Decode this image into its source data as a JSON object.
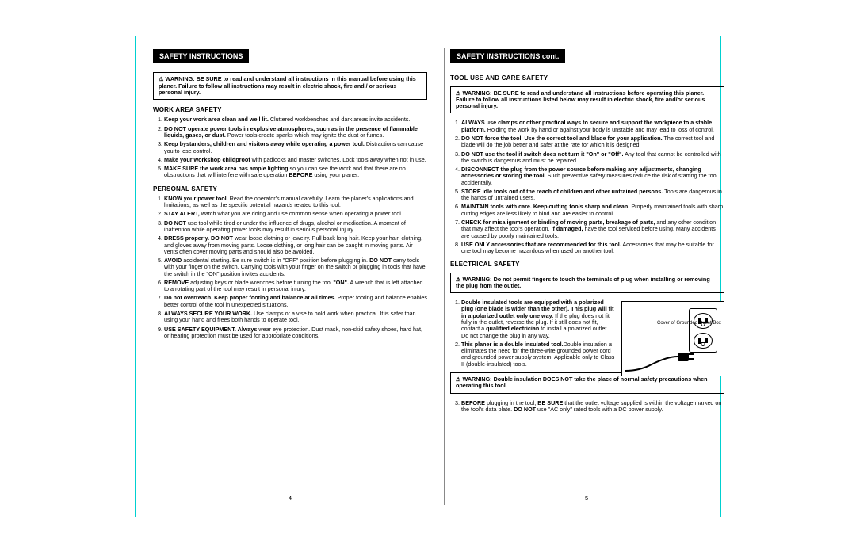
{
  "left": {
    "tab": "SAFETY INSTRUCTIONS",
    "warning_lead": "⚠ WARNING:",
    "warning_body": "BE SURE to read and understand all instructions in this manual before using this planer. Failure to follow all instructions may result in electric shock, fire and / or serious personal injury.",
    "work_head": "WORK AREA SAFETY",
    "work": [
      {
        "b": "Keep your work area clean and well lit.",
        "t": " Cluttered workbenches and dark areas invite accidents."
      },
      {
        "b": "DO NOT operate power tools in explosive atmospheres, such as in the presence of flammable liquids, gases, or dust.",
        "t": " Power tools create sparks which may ignite the dust or fumes."
      },
      {
        "b": "Keep bystanders, children and visitors away while operating a power tool.",
        "t": " Distractions can cause you to lose control."
      },
      {
        "b": "Make your workshop childproof",
        "t": " with padlocks and master switches. Lock tools away when not in use."
      },
      {
        "b": "MAKE SURE the work area has ample lighting",
        "t": " so you can see the work and that there are no obstructions that will interfere with safe operation ",
        "b2": "BEFORE",
        "t2": " using your planer."
      }
    ],
    "pers_head": "PERSONAL SAFETY",
    "pers": [
      {
        "b": "KNOW your power tool.",
        "t": " Read the operator's manual carefully. Learn the planer's applications and limitations, as well as the specific potential hazards related to this tool."
      },
      {
        "b": "STAY ALERT,",
        "t": " watch what you are doing and use common sense when operating a power tool."
      },
      {
        "b": "DO NOT",
        "t": " use tool while tired or under the influence of drugs, alcohol or medication. A moment of inattention while operating power tools may result in serious personal injury."
      },
      {
        "b": "DRESS properly. DO NOT",
        "t": " wear loose clothing or jewelry. Pull back long hair. Keep your hair, clothing, and gloves away from moving parts. Loose clothing, or long hair can be caught in moving parts. Air vents often cover moving parts and should also be avoided."
      },
      {
        "b": "AVOID",
        "t": " accidental starting. Be sure switch is in \"OFF\" position before plugging in. ",
        "b2": "DO NOT",
        "t2": " carry tools with your finger on the switch. Carrying tools with your finger on the switch or plugging in tools that have the switch in the \"ON\" position invites accidents."
      },
      {
        "b": "REMOVE",
        "t": " adjusting keys or blade wrenches before turning the tool ",
        "b2": "\"ON\".",
        "t2": " A wrench that is left attached to a rotating part of the tool may result in personal injury."
      },
      {
        "b": "Do not overreach. Keep proper footing and balance at all times.",
        "t": " Proper footing and balance enables better control of the tool in unexpected situations."
      },
      {
        "b": "ALWAYS SECURE YOUR WORK.",
        "t": " Use clamps or a vise to hold work when practical. It is safer than using your hand and frees both hands to operate tool."
      },
      {
        "b": "USE SAFETY EQUIPMENT. Always",
        "t": " wear eye protection. Dust mask, non-skid safety shoes, hard hat, or hearing protection must be used for appropriate conditions."
      }
    ],
    "pagenum": "4"
  },
  "right": {
    "tab": "SAFETY INSTRUCTIONS cont.",
    "tool_head": "TOOL USE AND CARE SAFETY",
    "warning_lead": "⚠ WARNING:",
    "warning_body": "BE SURE to read and understand all instructions before operating this planer. Failure to follow all instructions listed below may result in electric shock, fire and/or serious personal injury.",
    "tool": [
      {
        "b": "ALWAYS use clamps or other practical ways to secure and support the workpiece to a stable platform.",
        "t": " Holding the work by hand or against your body is unstable and may lead to loss of control."
      },
      {
        "b": "DO NOT force the tool. Use the correct tool and blade for your application.",
        "t": " The correct tool and blade will do the job better and safer at the rate for which it is designed."
      },
      {
        "b": "DO NOT use the tool if switch does not turn it \"On\" or \"Off\".",
        "t": " Any tool that cannot be controlled with the switch is dangerous and must be repaired."
      },
      {
        "b": "DISCONNECT the plug from the power source before making any adjustments, changing accessories or storing the tool.",
        "t": " Such preventive safety measures reduce the risk of starting the tool accidentally."
      },
      {
        "b": "STORE idle tools out of the reach of children and other untrained persons.",
        "t": " Tools are dangerous in the hands of untrained users."
      },
      {
        "b": "MAINTAIN tools with care. Keep cutting tools sharp and clean.",
        "t": " Properly maintained tools with sharp cutting edges are less likely to bind and are easier to control."
      },
      {
        "b": "CHECK for misalignment or binding of moving parts, breakage of parts,",
        "t": " and any other condition that may affect the tool's operation. ",
        "b2": "If damaged,",
        "t2": " have the tool serviced before using. Many accidents are caused by poorly maintained tools."
      },
      {
        "b": "USE ONLY accessories that are recommended for this tool.",
        "t": " Accessories that may be suitable for one tool may become hazardous when used on another tool."
      }
    ],
    "elec_head": "ELECTRICAL SAFETY",
    "elec_warn_lead": "⚠ WARNING:",
    "elec_warn_body": "Do not permit fingers to touch the terminals of plug when installing or removing the plug from the outlet.",
    "elec": [
      {
        "b": "Double insulated tools are equipped with a polarized plug (one blade is wider than the other). This plug will fit in a polarized outlet only one way.",
        "t": " If the plug does not fit fully in the outlet, reverse the plug. If it still does not fit, contact a ",
        "b2": "qualified electrician",
        "t2": " to install a polarized outlet. Do not change the plug in any way."
      },
      {
        "t": "Double insulation ⧈ eliminates the need for the three-wire grounded power cord and grounded power supply system. Applicable only to Class II (double-insulated) tools. ",
        "b": "This planer is a double insulated tool."
      }
    ],
    "elec_warn2_lead": "⚠ WARNING:",
    "elec_warn2_body": "Double insulation DOES NOT take the place of normal safety precautions when operating this tool.",
    "before": {
      "b": "BEFORE",
      "t": " plugging in the tool, ",
      "b2": "BE SURE",
      "t2": " that the outlet voltage supplied is within the voltage marked on the tool's data plate. ",
      "b3": "DO NOT",
      "t3": " use \"AC only\" rated tools with a DC power supply."
    },
    "fig_label": "Cover of Grounded Outlet Box",
    "pagenum": "5"
  }
}
